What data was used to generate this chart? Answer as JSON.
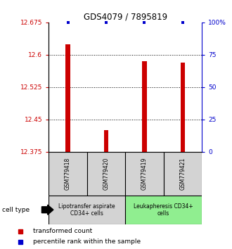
{
  "title": "GDS4079 / 7895819",
  "samples": [
    "GSM779418",
    "GSM779420",
    "GSM779419",
    "GSM779421"
  ],
  "red_values": [
    12.625,
    12.425,
    12.585,
    12.582
  ],
  "blue_values": [
    100,
    100,
    100,
    100
  ],
  "ylim_left": [
    12.375,
    12.675
  ],
  "ylim_right": [
    0,
    100
  ],
  "yticks_left": [
    12.375,
    12.45,
    12.525,
    12.6,
    12.675
  ],
  "yticks_right": [
    0,
    25,
    50,
    75,
    100
  ],
  "ytick_labels_left": [
    "12.375",
    "12.45",
    "12.525",
    "12.6",
    "12.675"
  ],
  "ytick_labels_right": [
    "0",
    "25",
    "50",
    "75",
    "100%"
  ],
  "groups": [
    {
      "label": "Lipotransfer aspirate\nCD34+ cells",
      "samples": [
        0,
        1
      ],
      "color": "#d3d3d3"
    },
    {
      "label": "Leukapheresis CD34+\ncells",
      "samples": [
        2,
        3
      ],
      "color": "#90ee90"
    }
  ],
  "bar_color": "#cc0000",
  "dot_color": "#0000cc",
  "group_label": "cell type",
  "legend1": "transformed count",
  "legend2": "percentile rank within the sample",
  "bar_width": 0.12,
  "left_tick_color": "#cc0000",
  "right_tick_color": "#0000cc"
}
